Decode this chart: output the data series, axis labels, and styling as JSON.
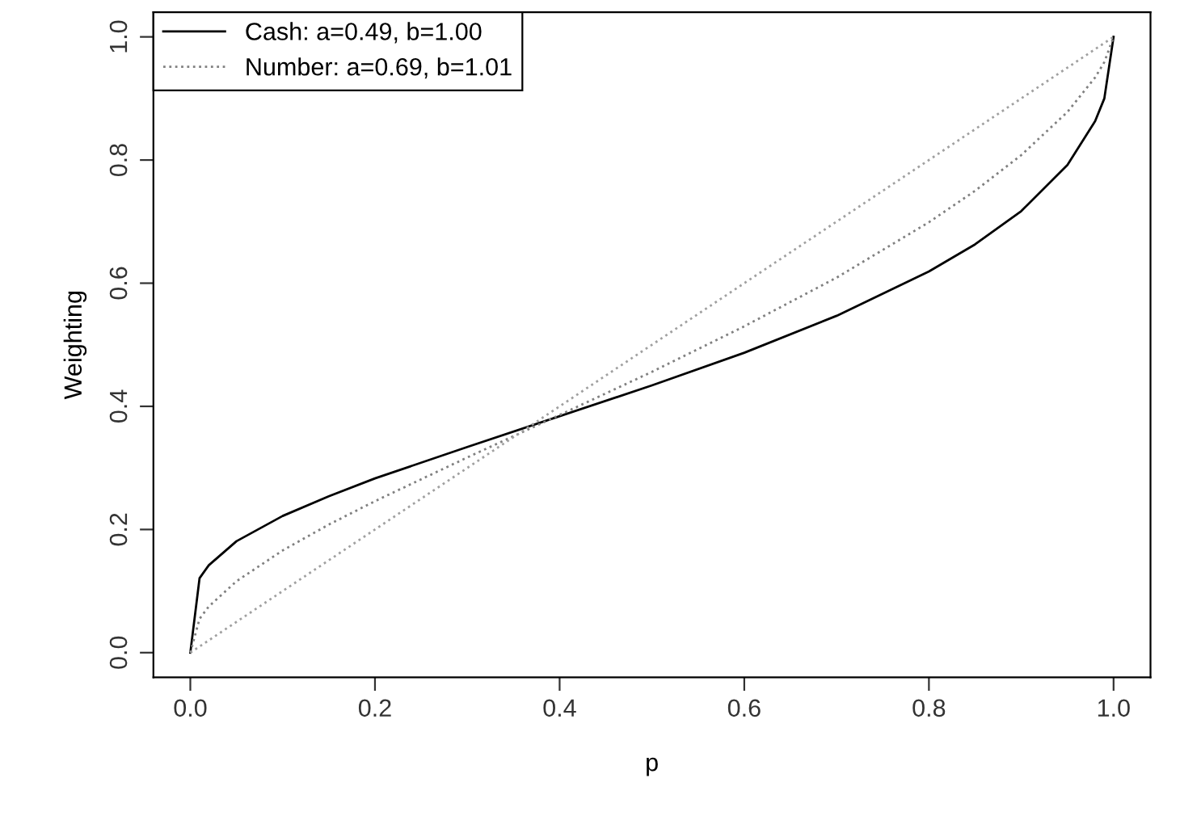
{
  "chart_data": {
    "type": "line",
    "xlabel": "p",
    "ylabel": "Weighting",
    "xlim": [
      -0.04,
      1.04
    ],
    "ylim": [
      -0.04,
      1.04
    ],
    "xticks": [
      {
        "value": 0,
        "label": "0.0"
      },
      0.2,
      0.4,
      0.6,
      0.8,
      {
        "value": 1,
        "label": "1.0"
      }
    ],
    "yticks": [
      {
        "value": 0,
        "label": "0.0"
      },
      0.2,
      0.4,
      0.6,
      0.8,
      {
        "value": 1,
        "label": "1.0"
      }
    ],
    "x": [
      0,
      0.01,
      0.02,
      0.05,
      0.1,
      0.15,
      0.2,
      0.3,
      0.4,
      0.5,
      0.6,
      0.7,
      0.8,
      0.85,
      0.9,
      0.95,
      0.98,
      0.99,
      1
    ],
    "series": [
      {
        "name": "Cash: a=0.49, b=1.00",
        "color": "#000000",
        "line_style": "solid",
        "values": [
          0,
          0.121,
          0.142,
          0.181,
          0.222,
          0.254,
          0.283,
          0.334,
          0.384,
          0.434,
          0.487,
          0.547,
          0.619,
          0.663,
          0.717,
          0.792,
          0.863,
          0.9,
          1
        ]
      },
      {
        "name": "Number: a=0.69, b=1.01",
        "color": "#808080",
        "line_style": "dotted",
        "values": [
          0,
          0.055,
          0.075,
          0.116,
          0.166,
          0.208,
          0.246,
          0.317,
          0.386,
          0.456,
          0.53,
          0.609,
          0.699,
          0.75,
          0.808,
          0.878,
          0.934,
          0.959,
          1
        ]
      },
      {
        "color": "#a0a0a0",
        "line_style": "dotted",
        "x": [
          0,
          1
        ],
        "values": [
          0,
          1
        ]
      }
    ],
    "grid": false,
    "legend": "top left",
    "marker": "none"
  }
}
